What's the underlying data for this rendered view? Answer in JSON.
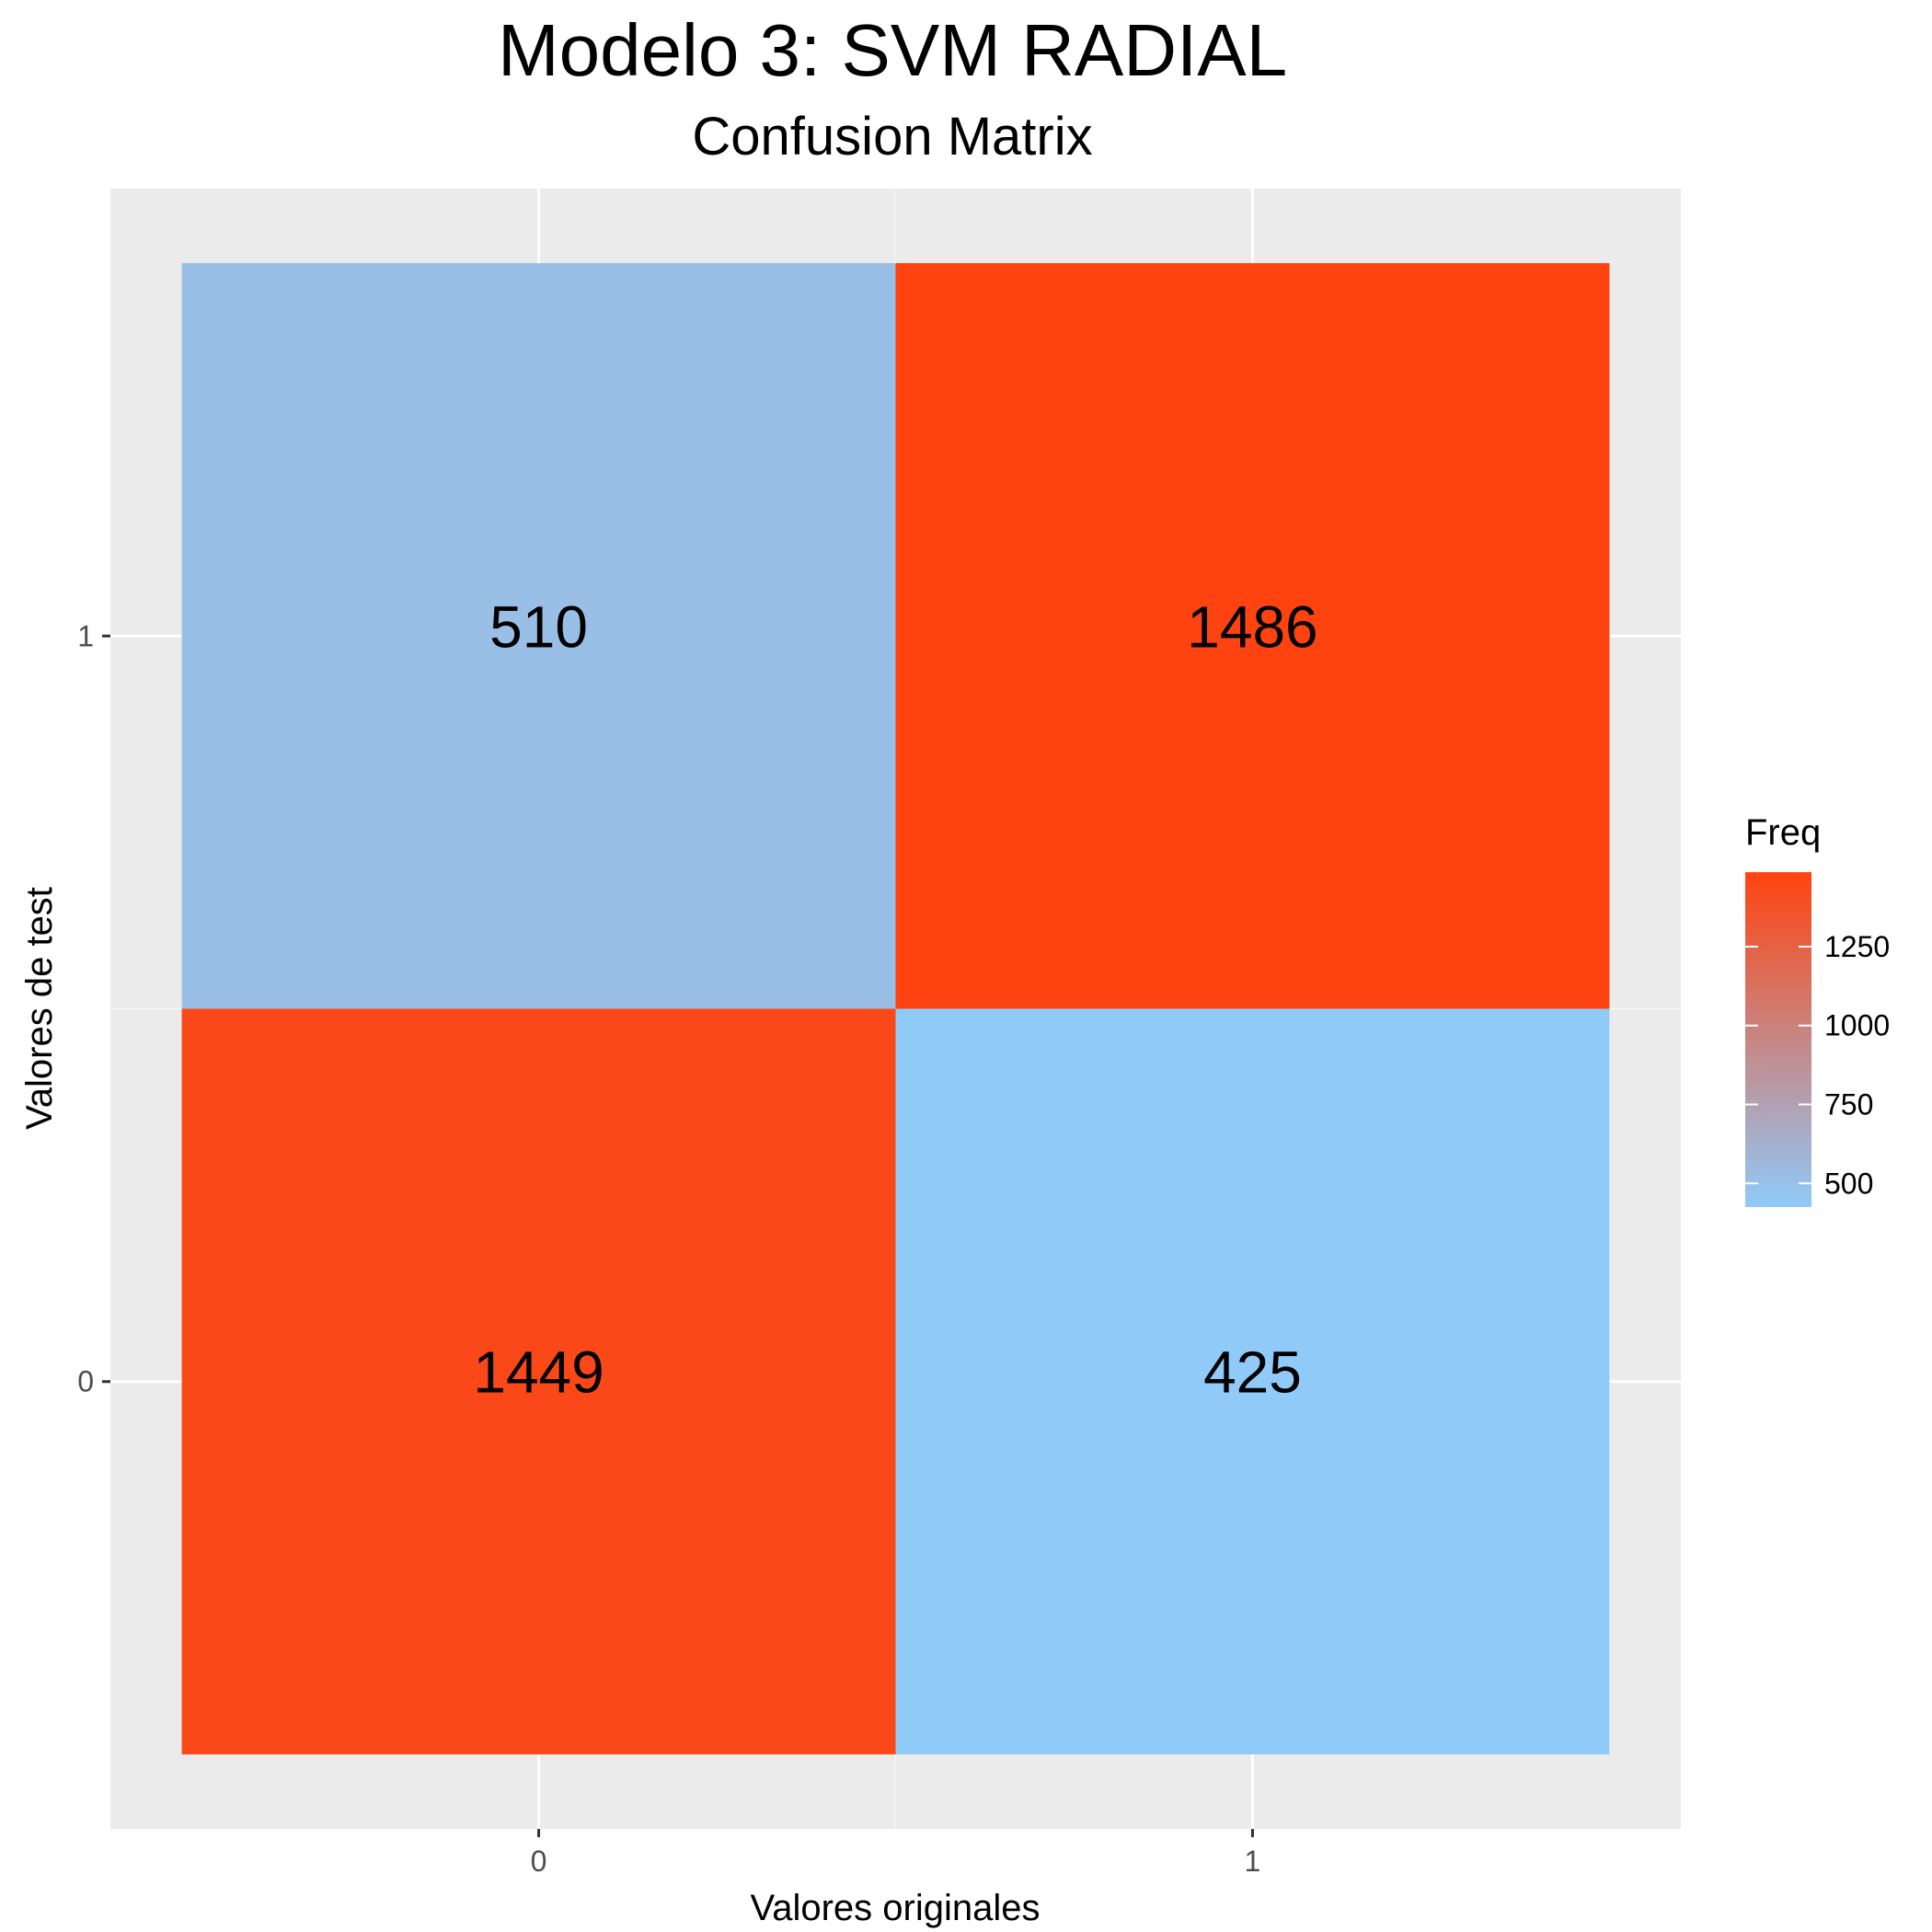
{
  "chart_data": {
    "type": "heatmap",
    "title": "Modelo 3: SVM RADIAL",
    "subtitle": "Confusion Matrix",
    "xlabel": "Valores originales",
    "ylabel": "Valores de test",
    "x_categories": [
      "0",
      "1"
    ],
    "y_categories": [
      "0",
      "1"
    ],
    "cells": [
      {
        "x": "0",
        "y": "1",
        "value": 510
      },
      {
        "x": "1",
        "y": "1",
        "value": 1486
      },
      {
        "x": "0",
        "y": "0",
        "value": 1449
      },
      {
        "x": "1",
        "y": "0",
        "value": 425
      }
    ],
    "legend": {
      "title": "Freq",
      "ticks": [
        500,
        750,
        1000,
        1250
      ],
      "low_color": "#90caf9",
      "high_color": "#ff4310",
      "placement": "right"
    },
    "panel_background": "#ebebeb",
    "grid": true
  }
}
